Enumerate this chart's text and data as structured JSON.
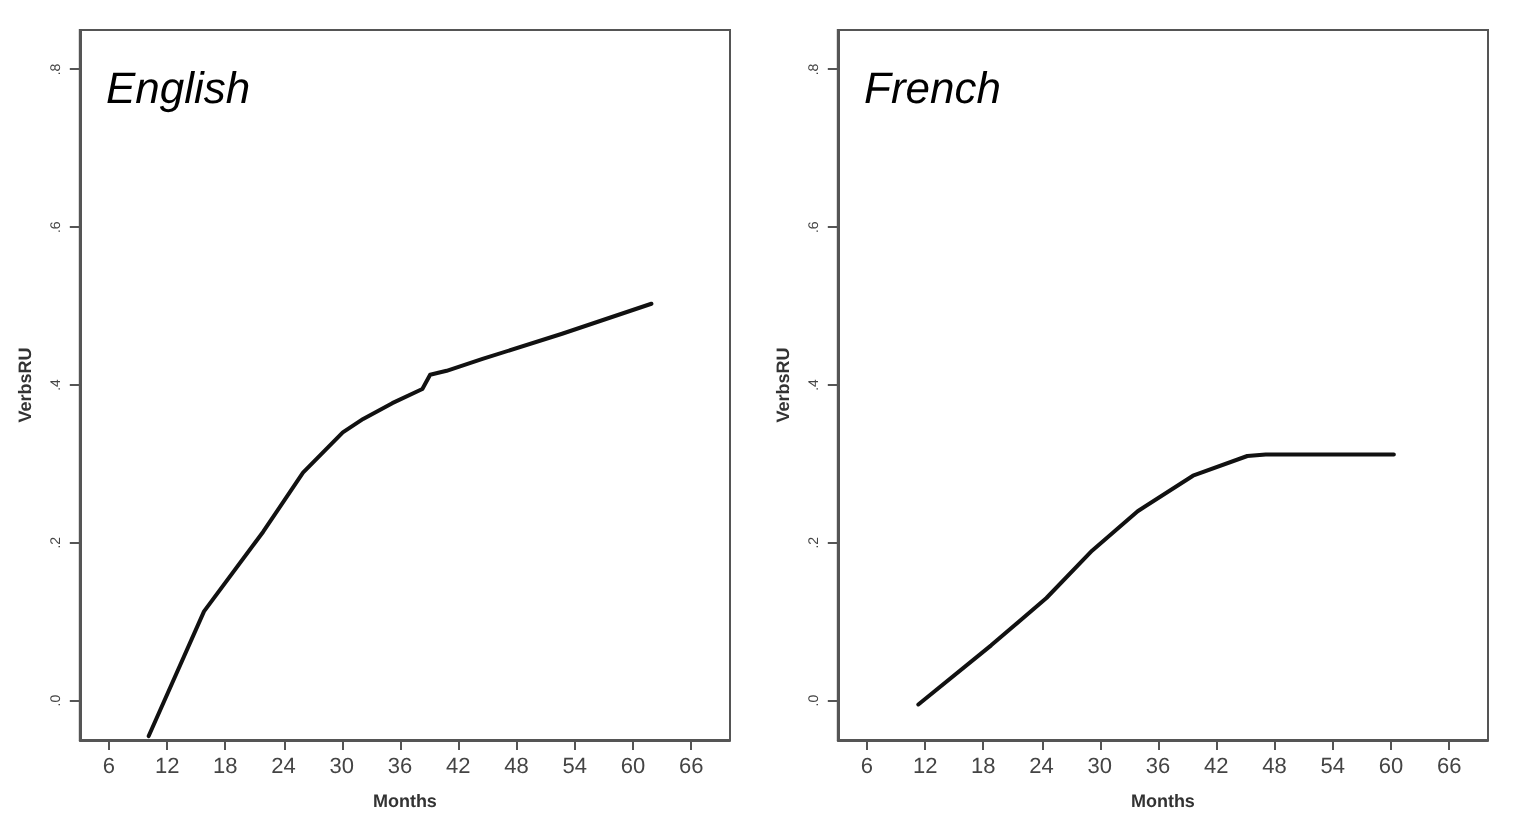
{
  "chart_data": [
    {
      "type": "line",
      "title": "English",
      "xlabel": "Months",
      "ylabel": "VerbsRU",
      "xlim": [
        3,
        70
      ],
      "xticks": [
        6,
        12,
        18,
        24,
        30,
        36,
        42,
        48,
        54,
        60,
        66
      ],
      "ylim": [
        -0.05,
        0.85
      ],
      "yticks": [
        {
          "value": 0,
          "label": ".0"
        },
        {
          "value": 0.2,
          "label": ".2"
        },
        {
          "value": 0.4,
          "label": ".4"
        },
        {
          "value": 0.6,
          "label": ".6"
        },
        {
          "value": 0.8,
          "label": ".8"
        }
      ],
      "grid": false,
      "marker": "none",
      "line_style": "solid",
      "series": [
        {
          "color": "#111111",
          "x": [
            10.1,
            15.8,
            21.9,
            26.0,
            30.1,
            32.2,
            35.2,
            38.3,
            39.1,
            40.8,
            44.5,
            52.7,
            61.9
          ],
          "values": [
            -0.045,
            0.113,
            0.214,
            0.289,
            0.34,
            0.357,
            0.377,
            0.395,
            0.413,
            0.418,
            0.433,
            0.465,
            0.503
          ]
        }
      ]
    },
    {
      "type": "line",
      "title": "French",
      "xlabel": "Months",
      "ylabel": "VerbsRU",
      "xlim": [
        3,
        70
      ],
      "xticks": [
        6,
        12,
        18,
        24,
        30,
        36,
        42,
        48,
        54,
        60,
        66
      ],
      "ylim": [
        -0.05,
        0.85
      ],
      "yticks": [
        {
          "value": 0,
          "label": ".0"
        },
        {
          "value": 0.2,
          "label": ".2"
        },
        {
          "value": 0.4,
          "label": ".4"
        },
        {
          "value": 0.6,
          "label": ".6"
        },
        {
          "value": 0.8,
          "label": ".8"
        }
      ],
      "grid": false,
      "marker": "none",
      "line_style": "solid",
      "series": [
        {
          "color": "#111111",
          "x": [
            11.3,
            18.8,
            24.5,
            29.2,
            33.9,
            39.6,
            45.2,
            47.1,
            60.3
          ],
          "values": [
            -0.005,
            0.07,
            0.13,
            0.19,
            0.24,
            0.285,
            0.31,
            0.312,
            0.312
          ]
        }
      ]
    }
  ]
}
